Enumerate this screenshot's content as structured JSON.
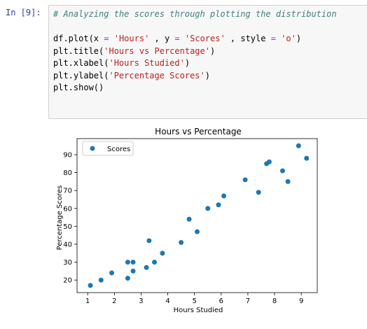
{
  "cell": {
    "prompt": "In [9]:",
    "code": {
      "comment": "# Analyzing the scores through plotting the distribution",
      "line1": {
        "a": "df.plot(x ",
        "eq1": "=",
        "b": " ",
        "s1": "'Hours'",
        "c": " , y ",
        "eq2": "=",
        "d": " ",
        "s2": "'Scores'",
        "e": " , style ",
        "eq3": "=",
        "f": " ",
        "s3": "'o'",
        "g": ")"
      },
      "line2": {
        "a": "plt.title(",
        "s": "'Hours vs Percentage'",
        "b": ")"
      },
      "line3": {
        "a": "plt.xlabel(",
        "s": "'Hours Studied'",
        "b": ")"
      },
      "line4": {
        "a": "plt.ylabel(",
        "s": "'Percentage Scores'",
        "b": ")"
      },
      "line5": "plt.show()"
    }
  },
  "chart_data": {
    "type": "scatter",
    "title": "Hours vs Percentage",
    "xlabel": "Hours Studied",
    "ylabel": "Percentage Scores",
    "xlim": [
      0.6,
      9.6
    ],
    "ylim": [
      13,
      99
    ],
    "xticks": [
      1,
      2,
      3,
      4,
      5,
      6,
      7,
      8,
      9
    ],
    "yticks": [
      20,
      30,
      40,
      50,
      60,
      70,
      80,
      90
    ],
    "legend": "top-left",
    "grid": false,
    "color": "#1f77b4",
    "series": [
      {
        "name": "Scores",
        "x": [
          2.5,
          5.1,
          3.2,
          8.5,
          3.5,
          1.5,
          9.2,
          5.5,
          8.3,
          2.7,
          7.7,
          5.9,
          4.5,
          3.3,
          1.1,
          8.9,
          2.5,
          1.9,
          6.1,
          7.4,
          2.7,
          4.8,
          3.8,
          6.9,
          7.8
        ],
        "y": [
          21,
          47,
          27,
          75,
          30,
          20,
          88,
          60,
          81,
          25,
          85,
          62,
          41,
          42,
          17,
          95,
          30,
          24,
          67,
          69,
          30,
          54,
          35,
          76,
          86
        ]
      }
    ]
  }
}
